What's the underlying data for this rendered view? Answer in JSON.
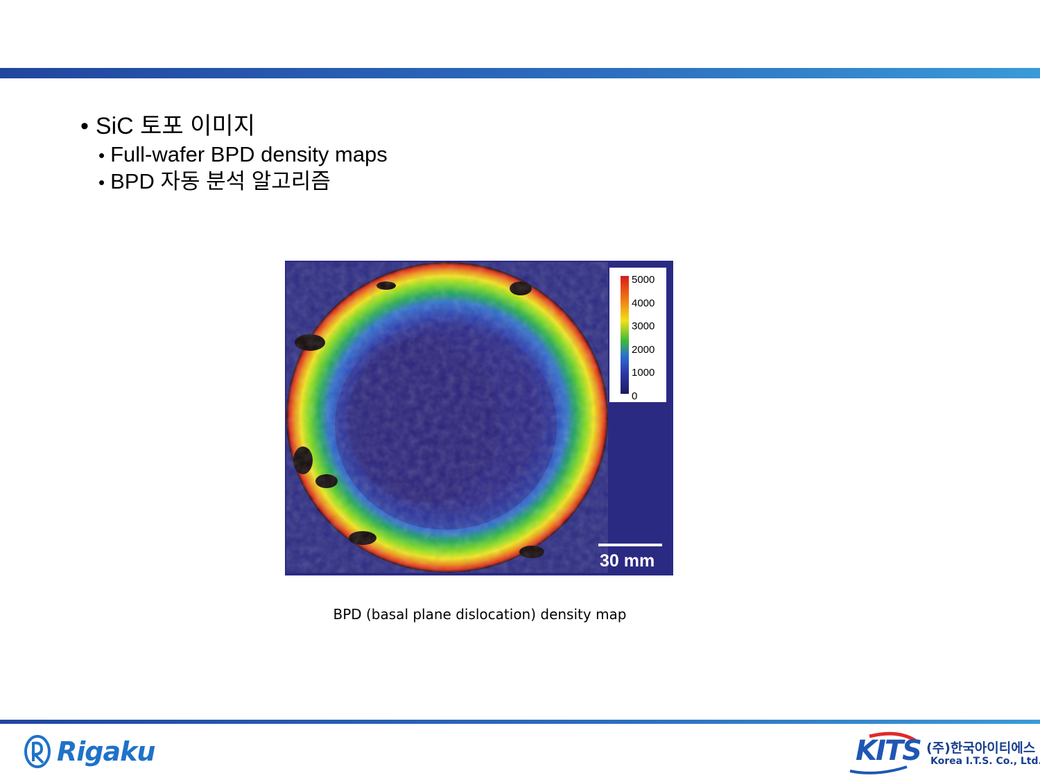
{
  "bullets": {
    "main": "SiC 토포 이미지",
    "sub": [
      "Full-wafer BPD density maps",
      "BPD 자동 분석 알고리즘"
    ]
  },
  "figure": {
    "colorbar_ticks": [
      "5000",
      "4000",
      "3000",
      "2000",
      "1000",
      "0"
    ],
    "scale_bar_label": "30 mm",
    "caption": "BPD (basal plane dislocation) density map"
  },
  "footer": {
    "left_logo_text": "Rigaku",
    "right_logo_text": "KITS",
    "right_company_korean": "(주)한국아이티에스",
    "right_company_english": "Korea I.T.S. Co., Ltd."
  },
  "colors": {
    "accent_bar": "#2d6fc0",
    "map_background": "#2b2a83"
  }
}
